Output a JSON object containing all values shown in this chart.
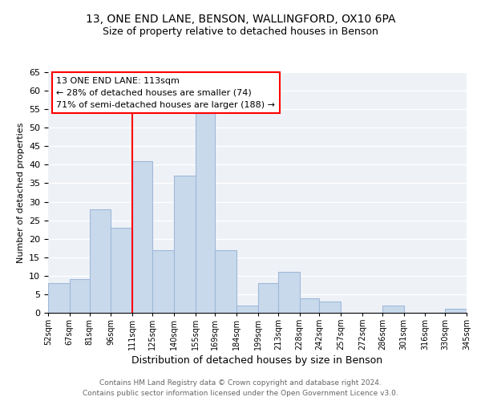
{
  "title1": "13, ONE END LANE, BENSON, WALLINGFORD, OX10 6PA",
  "title2": "Size of property relative to detached houses in Benson",
  "xlabel": "Distribution of detached houses by size in Benson",
  "ylabel": "Number of detached properties",
  "bar_color": "#c8d9ec",
  "bar_edge_color": "#a0b8d8",
  "vline_x": 111,
  "vline_color": "red",
  "annotation_title": "13 ONE END LANE: 113sqm",
  "annotation_line1": "← 28% of detached houses are smaller (74)",
  "annotation_line2": "71% of semi-detached houses are larger (188) →",
  "annotation_box_color": "white",
  "annotation_box_edgecolor": "red",
  "bins": [
    52,
    67,
    81,
    96,
    111,
    125,
    140,
    155,
    169,
    184,
    199,
    213,
    228,
    242,
    257,
    272,
    286,
    301,
    316,
    330,
    345
  ],
  "counts": [
    8,
    9,
    28,
    23,
    41,
    17,
    37,
    54,
    17,
    2,
    8,
    11,
    4,
    3,
    0,
    0,
    2,
    0,
    0,
    1
  ],
  "xlabels": [
    "52sqm",
    "67sqm",
    "81sqm",
    "96sqm",
    "111sqm",
    "125sqm",
    "140sqm",
    "155sqm",
    "169sqm",
    "184sqm",
    "199sqm",
    "213sqm",
    "228sqm",
    "242sqm",
    "257sqm",
    "272sqm",
    "286sqm",
    "301sqm",
    "316sqm",
    "330sqm",
    "345sqm"
  ],
  "ylim": [
    0,
    65
  ],
  "yticks": [
    0,
    5,
    10,
    15,
    20,
    25,
    30,
    35,
    40,
    45,
    50,
    55,
    60,
    65
  ],
  "footer1": "Contains HM Land Registry data © Crown copyright and database right 2024.",
  "footer2": "Contains public sector information licensed under the Open Government Licence v3.0.",
  "bg_color": "#eef2f7",
  "grid_color": "white",
  "title1_fontsize": 10,
  "title2_fontsize": 9,
  "ylabel_fontsize": 8,
  "xlabel_fontsize": 9,
  "footer_fontsize": 6.5,
  "footer_color": "#666666",
  "tick_fontsize": 8,
  "xtick_fontsize": 7
}
